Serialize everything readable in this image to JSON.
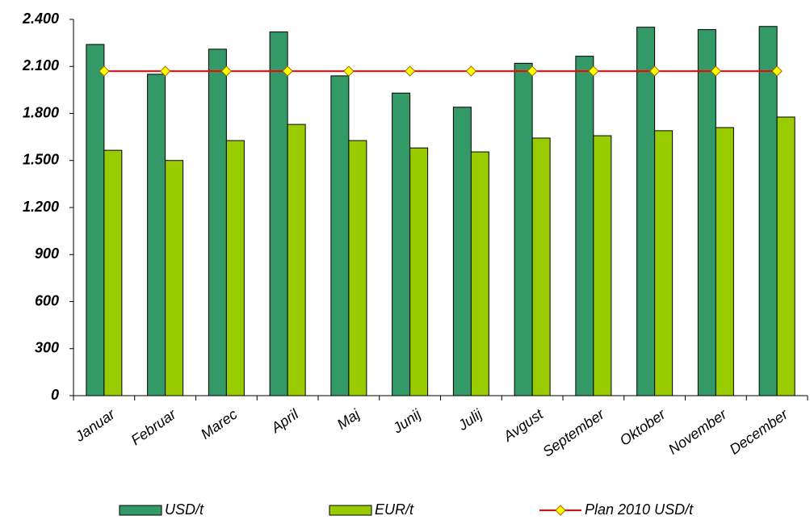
{
  "chart_data": {
    "type": "bar",
    "categories": [
      "Januar",
      "Februar",
      "Marec",
      "April",
      "Maj",
      "Junij",
      "Julij",
      "Avgust",
      "September",
      "Oktober",
      "November",
      "December"
    ],
    "series": [
      {
        "name": "USD/t",
        "type": "bar",
        "color": "#339966",
        "values": [
          2240,
          2050,
          2210,
          2320,
          2040,
          1930,
          1840,
          2120,
          2165,
          2350,
          2335,
          2355
        ]
      },
      {
        "name": "EUR/t",
        "type": "bar",
        "color": "#99cc00",
        "values": [
          1565,
          1500,
          1627,
          1730,
          1627,
          1580,
          1555,
          1643,
          1658,
          1690,
          1710,
          1777
        ]
      },
      {
        "name": "Plan 2010 USD/t",
        "type": "line",
        "color": "#ff0000",
        "marker_color": "#ffff00",
        "values": [
          2070,
          2070,
          2070,
          2070,
          2070,
          2070,
          2070,
          2070,
          2070,
          2070,
          2070,
          2070
        ]
      }
    ],
    "ylim": [
      0,
      2400
    ],
    "yticks": [
      0,
      300,
      600,
      900,
      {
        "value": 1200,
        "label": "1.200"
      },
      {
        "value": 1500,
        "label": "1.500"
      },
      {
        "value": 1800,
        "label": "1.800"
      },
      {
        "value": 2100,
        "label": "2.100"
      },
      {
        "value": 2400,
        "label": "2.400"
      }
    ],
    "legend": "bottom"
  }
}
